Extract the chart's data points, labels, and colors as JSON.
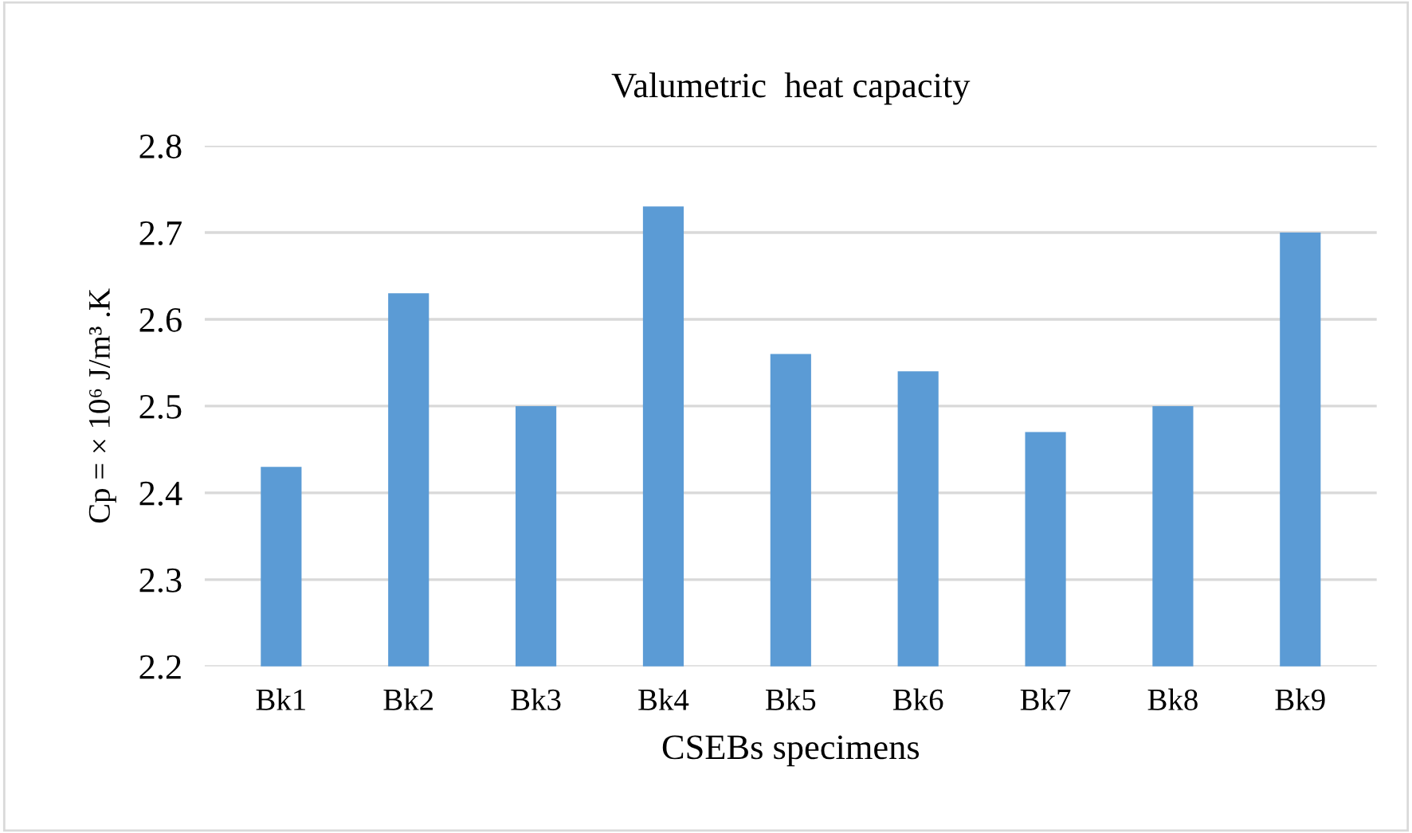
{
  "chart_data": {
    "type": "bar",
    "title": "Valumetric  heat capacity",
    "xlabel": "CSEBs specimens",
    "ylabel": "Cp = × 10⁶ J/m³ .K",
    "categories": [
      "Bk1",
      "Bk2",
      "Bk3",
      "Bk4",
      "Bk5",
      "Bk6",
      "Bk7",
      "Bk8",
      "Bk9"
    ],
    "values": [
      2.43,
      2.63,
      2.5,
      2.73,
      2.56,
      2.54,
      2.47,
      2.5,
      2.7
    ],
    "color": "#5b9bd5",
    "ylim": [
      2.2,
      2.8
    ],
    "yticks": [
      2.2,
      2.3,
      2.4,
      2.5,
      2.6,
      2.7,
      2.8
    ],
    "grid": "y"
  }
}
